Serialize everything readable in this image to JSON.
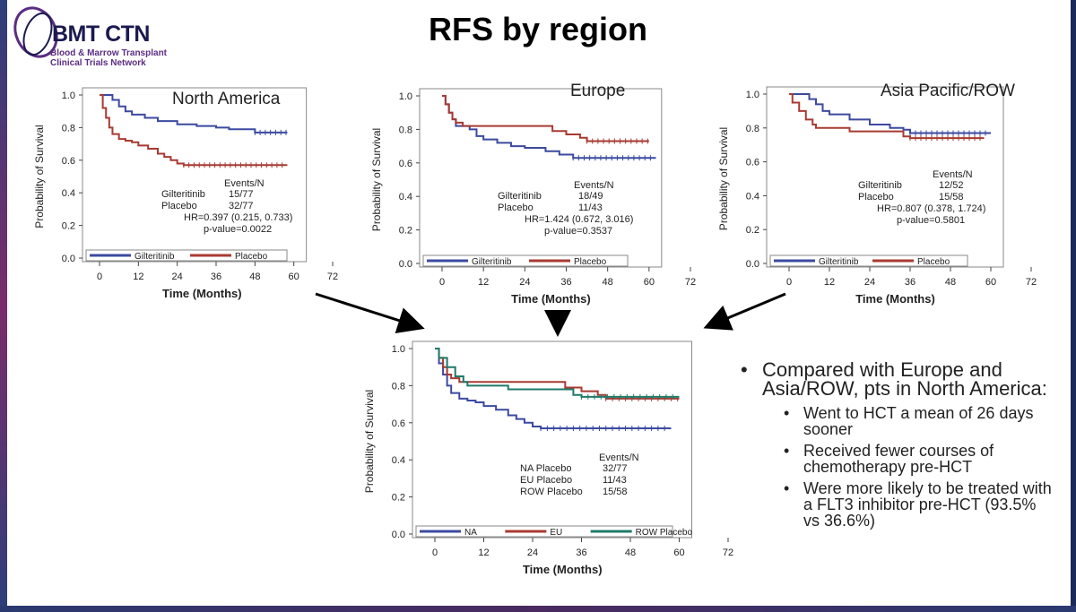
{
  "logo": {
    "main": "BMT CTN",
    "sub_line1": "Blood & Marrow Transplant",
    "sub_line2": "Clinical Trials Network"
  },
  "slide_title": "RFS by region",
  "chart_data": [
    {
      "type": "line",
      "title": "North America",
      "xlabel": "Time (Months)",
      "ylabel": "Probability of Survival",
      "xlim": [
        0,
        72
      ],
      "ylim": [
        0,
        1
      ],
      "x_ticks": [
        0,
        12,
        24,
        36,
        48,
        60,
        72
      ],
      "y_ticks": [
        "0.0",
        "0.2",
        "0.4",
        "0.6",
        "0.8",
        "1.0"
      ],
      "series": [
        {
          "name": "Gilteritinib",
          "color": "#3b4aa0",
          "points": [
            [
              0,
              1.0
            ],
            [
              3,
              1.0
            ],
            [
              4,
              0.97
            ],
            [
              6,
              0.93
            ],
            [
              8,
              0.9
            ],
            [
              10,
              0.88
            ],
            [
              14,
              0.86
            ],
            [
              18,
              0.84
            ],
            [
              24,
              0.82
            ],
            [
              30,
              0.81
            ],
            [
              36,
              0.8
            ],
            [
              40,
              0.79
            ],
            [
              44,
              0.79
            ],
            [
              48,
              0.77
            ],
            [
              58,
              0.77
            ]
          ]
        },
        {
          "name": "Placebo",
          "color": "#a83a32",
          "points": [
            [
              0,
              1.0
            ],
            [
              1,
              0.92
            ],
            [
              2,
              0.86
            ],
            [
              3,
              0.8
            ],
            [
              4,
              0.76
            ],
            [
              6,
              0.73
            ],
            [
              8,
              0.72
            ],
            [
              10,
              0.71
            ],
            [
              12,
              0.69
            ],
            [
              15,
              0.67
            ],
            [
              18,
              0.64
            ],
            [
              20,
              0.62
            ],
            [
              22,
              0.6
            ],
            [
              24,
              0.58
            ],
            [
              26,
              0.57
            ],
            [
              58,
              0.57
            ]
          ]
        }
      ],
      "stats_header": "Events/N",
      "stats": [
        {
          "label": "Gilteritinib",
          "value": "15/77"
        },
        {
          "label": "Placebo",
          "value": "32/77"
        }
      ],
      "hr": "HR=0.397 (0.215, 0.733)",
      "pvalue": "p-value=0.0022",
      "legend": [
        "Gilteritinib",
        "Placebo"
      ],
      "legend_position": "bottom"
    },
    {
      "type": "line",
      "title": "Europe",
      "xlabel": "Time (Months)",
      "ylabel": "Probability of Survival",
      "xlim": [
        0,
        72
      ],
      "ylim": [
        0,
        1
      ],
      "x_ticks": [
        0,
        12,
        24,
        36,
        48,
        60,
        72
      ],
      "y_ticks": [
        "0.0",
        "0.2",
        "0.4",
        "0.6",
        "0.8",
        "1.0"
      ],
      "series": [
        {
          "name": "Gilteritinib",
          "color": "#3b4aa0",
          "points": [
            [
              0,
              1.0
            ],
            [
              1,
              0.95
            ],
            [
              2,
              0.9
            ],
            [
              3,
              0.86
            ],
            [
              4,
              0.82
            ],
            [
              8,
              0.8
            ],
            [
              10,
              0.76
            ],
            [
              12,
              0.74
            ],
            [
              16,
              0.72
            ],
            [
              20,
              0.7
            ],
            [
              24,
              0.69
            ],
            [
              30,
              0.67
            ],
            [
              34,
              0.65
            ],
            [
              38,
              0.63
            ],
            [
              62,
              0.63
            ]
          ]
        },
        {
          "name": "Placebo",
          "color": "#a83a32",
          "points": [
            [
              0,
              1.0
            ],
            [
              1,
              0.95
            ],
            [
              2,
              0.9
            ],
            [
              3,
              0.86
            ],
            [
              4,
              0.84
            ],
            [
              6,
              0.82
            ],
            [
              12,
              0.82
            ],
            [
              30,
              0.82
            ],
            [
              32,
              0.79
            ],
            [
              36,
              0.77
            ],
            [
              40,
              0.75
            ],
            [
              42,
              0.73
            ],
            [
              60,
              0.73
            ]
          ]
        }
      ],
      "stats_header": "Events/N",
      "stats": [
        {
          "label": "Gilteritinib",
          "value": "18/49"
        },
        {
          "label": "Placebo",
          "value": "11/43"
        }
      ],
      "hr": "HR=1.424 (0.672, 3.016)",
      "pvalue": "p-value=0.3537",
      "legend": [
        "Gilteritinib",
        "Placebo"
      ],
      "legend_position": "bottom"
    },
    {
      "type": "line",
      "title": "Asia Pacific/ROW",
      "xlabel": "Time (Months)",
      "ylabel": "Probability of Survival",
      "xlim": [
        0,
        72
      ],
      "ylim": [
        0,
        1
      ],
      "x_ticks": [
        0,
        12,
        24,
        36,
        48,
        60,
        72
      ],
      "y_ticks": [
        "0.0",
        "0.2",
        "0.4",
        "0.6",
        "0.8",
        "1.0"
      ],
      "series": [
        {
          "name": "Gilteritinib",
          "color": "#3b4aa0",
          "points": [
            [
              0,
              1.0
            ],
            [
              4,
              1.0
            ],
            [
              6,
              0.97
            ],
            [
              8,
              0.94
            ],
            [
              10,
              0.9
            ],
            [
              12,
              0.88
            ],
            [
              18,
              0.85
            ],
            [
              24,
              0.82
            ],
            [
              30,
              0.8
            ],
            [
              34,
              0.79
            ],
            [
              36,
              0.77
            ],
            [
              60,
              0.77
            ]
          ]
        },
        {
          "name": "Placebo",
          "color": "#a83a32",
          "points": [
            [
              0,
              1.0
            ],
            [
              1,
              0.95
            ],
            [
              3,
              0.9
            ],
            [
              5,
              0.85
            ],
            [
              7,
              0.82
            ],
            [
              8,
              0.8
            ],
            [
              12,
              0.8
            ],
            [
              18,
              0.78
            ],
            [
              32,
              0.78
            ],
            [
              34,
              0.75
            ],
            [
              36,
              0.74
            ],
            [
              58,
              0.74
            ]
          ]
        }
      ],
      "stats_header": "Events/N",
      "stats": [
        {
          "label": "Gilteritinib",
          "value": "12/52"
        },
        {
          "label": "Placebo",
          "value": "15/58"
        }
      ],
      "hr": "HR=0.807 (0.378, 1.724)",
      "pvalue": "p-value=0.5801",
      "legend": [
        "Gilteritinib",
        "Placebo"
      ],
      "legend_position": "bottom"
    },
    {
      "type": "line",
      "title": "",
      "xlabel": "Time (Months)",
      "ylabel": "Probability of Survival",
      "xlim": [
        0,
        72
      ],
      "ylim": [
        0,
        1
      ],
      "x_ticks": [
        0,
        12,
        24,
        36,
        48,
        60,
        72
      ],
      "y_ticks": [
        "0.0",
        "0.2",
        "0.4",
        "0.6",
        "0.8",
        "1.0"
      ],
      "series": [
        {
          "name": "NA",
          "color": "#3b4aa0",
          "points": [
            [
              0,
              1.0
            ],
            [
              1,
              0.92
            ],
            [
              2,
              0.86
            ],
            [
              3,
              0.8
            ],
            [
              4,
              0.76
            ],
            [
              6,
              0.73
            ],
            [
              8,
              0.72
            ],
            [
              10,
              0.71
            ],
            [
              12,
              0.69
            ],
            [
              15,
              0.67
            ],
            [
              18,
              0.64
            ],
            [
              20,
              0.62
            ],
            [
              22,
              0.6
            ],
            [
              24,
              0.58
            ],
            [
              26,
              0.57
            ],
            [
              58,
              0.57
            ]
          ]
        },
        {
          "name": "EU",
          "color": "#a83a32",
          "points": [
            [
              0,
              1.0
            ],
            [
              1,
              0.95
            ],
            [
              2,
              0.9
            ],
            [
              3,
              0.86
            ],
            [
              4,
              0.84
            ],
            [
              6,
              0.82
            ],
            [
              12,
              0.82
            ],
            [
              30,
              0.82
            ],
            [
              32,
              0.79
            ],
            [
              36,
              0.77
            ],
            [
              40,
              0.75
            ],
            [
              42,
              0.73
            ],
            [
              60,
              0.73
            ]
          ]
        },
        {
          "name": "ROW Placebo",
          "color": "#1f7a6a",
          "points": [
            [
              0,
              1.0
            ],
            [
              1,
              0.95
            ],
            [
              3,
              0.9
            ],
            [
              5,
              0.85
            ],
            [
              7,
              0.82
            ],
            [
              8,
              0.8
            ],
            [
              12,
              0.8
            ],
            [
              18,
              0.78
            ],
            [
              32,
              0.78
            ],
            [
              34,
              0.75
            ],
            [
              36,
              0.74
            ],
            [
              60,
              0.74
            ]
          ]
        }
      ],
      "stats_header": "Events/N",
      "stats": [
        {
          "label": "NA Placebo",
          "value": "32/77"
        },
        {
          "label": "EU Placebo",
          "value": "11/43"
        },
        {
          "label": "ROW Placebo",
          "value": "15/58"
        }
      ],
      "hr": "",
      "pvalue": "",
      "legend": [
        "NA",
        "EU",
        "ROW Placebo"
      ],
      "legend_position": "bottom"
    }
  ],
  "bullets": {
    "main": "Compared with Europe and Asia/ROW, pts in North America:",
    "items": [
      "Went to HCT a mean of 26 days sooner",
      "Received fewer courses of chemotherapy pre-HCT",
      "Were more likely to be treated with a FLT3 inhibitor pre-HCT (93.5% vs 36.6%)"
    ]
  }
}
